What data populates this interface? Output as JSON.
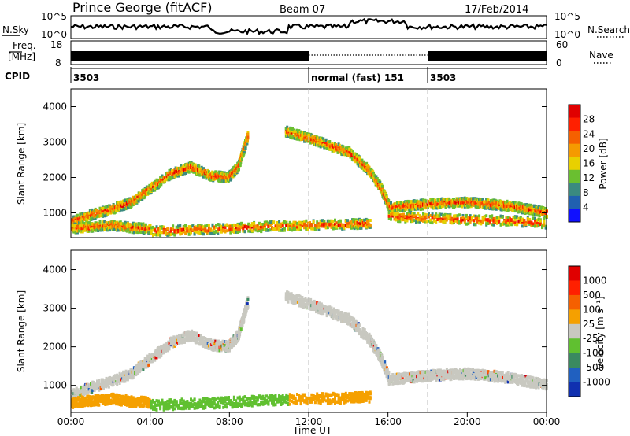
{
  "header": {
    "station": "Prince George (fitACF)",
    "beam": "Beam 07",
    "date": "17/Feb/2014"
  },
  "top_panels": {
    "nsky_label": "N.Sky",
    "nsky_ticks": [
      "10^5",
      "10^0"
    ],
    "nsearch_label": "N.Search",
    "nsearch_ticks": [
      "10^5",
      "10^0"
    ],
    "freq_label_1": "Freq.",
    "freq_label_2": "[MHz]",
    "freq_ticks": [
      "18",
      "8"
    ],
    "nave_label": "Nave",
    "nave_ticks": [
      "60",
      "0"
    ],
    "cpid_label": "CPID",
    "cpid_segments": [
      {
        "start_h": 0,
        "end_h": 12,
        "label": "3503"
      },
      {
        "start_h": 12,
        "end_h": 18,
        "label": "normal (fast) 151"
      },
      {
        "start_h": 18,
        "end_h": 24,
        "label": "3503"
      }
    ]
  },
  "chart_data": [
    {
      "type": "heatmap",
      "name": "power",
      "ylabel": "Slant Range [km]",
      "ylim": [
        300,
        4500
      ],
      "yticks": [
        "1000",
        "2000",
        "3000",
        "4000"
      ],
      "xlim": [
        0,
        24
      ],
      "colorbar_label": "Power [dB]",
      "colorbar_ticks": [
        "4",
        "8",
        "12",
        "16",
        "20",
        "24",
        "28"
      ],
      "colorbar_colors": [
        "#1010ff",
        "#2060b0",
        "#3a8a80",
        "#6abf30",
        "#e8d000",
        "#f59a00",
        "#f56000",
        "#ff2000",
        "#e00000"
      ],
      "scatter_bands": [
        {
          "x": [
            0,
            1,
            2,
            3,
            4,
            5,
            6,
            7,
            7.9,
            8.4,
            8.9
          ],
          "y": [
            750,
            950,
            1100,
            1300,
            1700,
            2100,
            2300,
            2050,
            2000,
            2300,
            3200
          ]
        },
        {
          "x": [
            0,
            1,
            2,
            3,
            4
          ],
          "y": [
            550,
            600,
            650,
            580,
            550
          ]
        },
        {
          "x": [
            4,
            6,
            8,
            10,
            12,
            14,
            15.1
          ],
          "y": [
            480,
            520,
            560,
            620,
            650,
            680,
            700
          ]
        },
        {
          "x": [
            10.8,
            12,
            13,
            14,
            15,
            15.6,
            16
          ],
          "y": [
            3300,
            3100,
            2900,
            2700,
            2200,
            1700,
            1200
          ]
        },
        {
          "x": [
            16,
            17,
            18,
            19,
            20,
            21,
            22,
            23,
            24
          ],
          "y": [
            1150,
            1200,
            1250,
            1280,
            1300,
            1250,
            1200,
            1100,
            1000
          ]
        },
        {
          "x": [
            16,
            18,
            20,
            22,
            24
          ],
          "y": [
            900,
            850,
            800,
            780,
            700
          ]
        }
      ]
    },
    {
      "type": "heatmap",
      "name": "velocity",
      "ylabel": "Slant Range [km]",
      "ylim": [
        300,
        4500
      ],
      "yticks": [
        "1000",
        "2000",
        "3000",
        "4000"
      ],
      "xlim": [
        0,
        24
      ],
      "colorbar_label": "Velocity [m s⁻¹]",
      "colorbar_ticks": [
        "1000",
        "500",
        "100",
        "25",
        "-25",
        "-100",
        "-500",
        "-1000"
      ],
      "colorbar_colors": [
        "#1030b0",
        "#2060c0",
        "#3a8a60",
        "#60c030",
        "#c8c8c0",
        "#f5a000",
        "#f56000",
        "#ff2000",
        "#e00000"
      ],
      "scatter_bands": [
        {
          "x": [
            0,
            1,
            2,
            3,
            4,
            5,
            6,
            7,
            7.9,
            8.4,
            8.9
          ],
          "y": [
            750,
            950,
            1100,
            1300,
            1700,
            2100,
            2300,
            2050,
            2000,
            2300,
            3200
          ]
        },
        {
          "x": [
            0,
            1,
            2,
            3,
            4
          ],
          "y": [
            550,
            600,
            650,
            580,
            550
          ]
        },
        {
          "x": [
            4,
            6,
            8,
            10,
            12,
            14,
            15.1
          ],
          "y": [
            480,
            520,
            560,
            620,
            650,
            680,
            700
          ]
        },
        {
          "x": [
            10.8,
            12,
            13,
            14,
            15,
            15.6,
            16
          ],
          "y": [
            3300,
            3100,
            2900,
            2700,
            2200,
            1700,
            1200
          ]
        },
        {
          "x": [
            16,
            17,
            18,
            19,
            20,
            21,
            22,
            23,
            24
          ],
          "y": [
            1150,
            1200,
            1250,
            1280,
            1300,
            1250,
            1200,
            1100,
            1000
          ]
        }
      ]
    }
  ],
  "xaxis": {
    "label": "Time UT",
    "ticks": [
      "00:00",
      "04:00",
      "08:00",
      "12:00",
      "16:00",
      "20:00",
      "00:00"
    ]
  }
}
